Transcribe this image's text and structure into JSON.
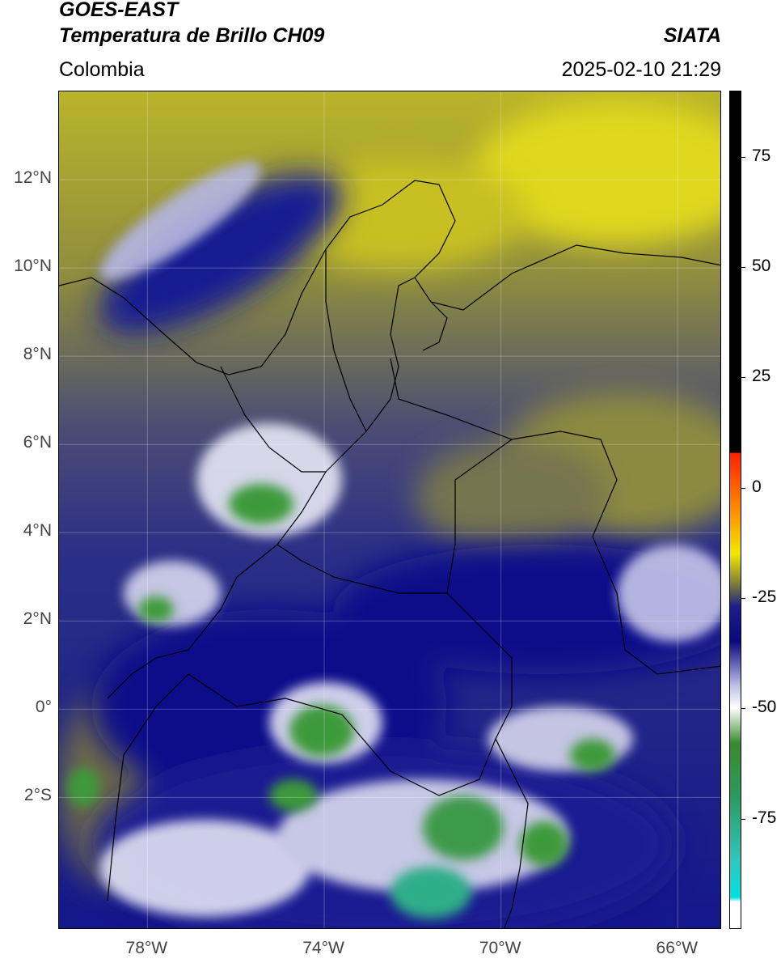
{
  "header": {
    "title_line1": "GOES-EAST",
    "title_line2": "Temperatura de Brillo CH09",
    "subtitle": "Colombia",
    "brand": "SIATA",
    "timestamp": "2025-02-10 21:29"
  },
  "map": {
    "lat_ticks": [
      "12°N",
      "10°N",
      "8°N",
      "6°N",
      "4°N",
      "2°N",
      "0°",
      "2°S"
    ],
    "lon_ticks": [
      "78°W",
      "74°W",
      "70°W",
      "66°W"
    ],
    "extent": {
      "lon_min": -80,
      "lon_max": -65,
      "lat_min": -5,
      "lat_max": 14
    }
  },
  "colorbar": {
    "tick_labels": [
      "75",
      "50",
      "25",
      "0",
      "-25",
      "-50",
      "-75"
    ],
    "tick_values": [
      75,
      50,
      25,
      0,
      -25,
      -50,
      -75
    ],
    "range": [
      -100,
      90
    ],
    "stops": [
      {
        "v": 90,
        "c": "#000000"
      },
      {
        "v": 8,
        "c": "#000000"
      },
      {
        "v": 7.9,
        "c": "#ff2000"
      },
      {
        "v": -5,
        "c": "#ff8c00"
      },
      {
        "v": -15,
        "c": "#f0e800"
      },
      {
        "v": -22,
        "c": "#7a7a3a"
      },
      {
        "v": -27,
        "c": "#1c1c8c"
      },
      {
        "v": -35,
        "c": "#0a0a80"
      },
      {
        "v": -45,
        "c": "#c0c0e8"
      },
      {
        "v": -50,
        "c": "#ffffff"
      },
      {
        "v": -58,
        "c": "#3a8a30"
      },
      {
        "v": -70,
        "c": "#2a9a60"
      },
      {
        "v": -85,
        "c": "#30c8c0"
      },
      {
        "v": -93,
        "c": "#00e0e0"
      },
      {
        "v": -94,
        "c": "#ffffff"
      },
      {
        "v": -100,
        "c": "#ffffff"
      }
    ]
  }
}
